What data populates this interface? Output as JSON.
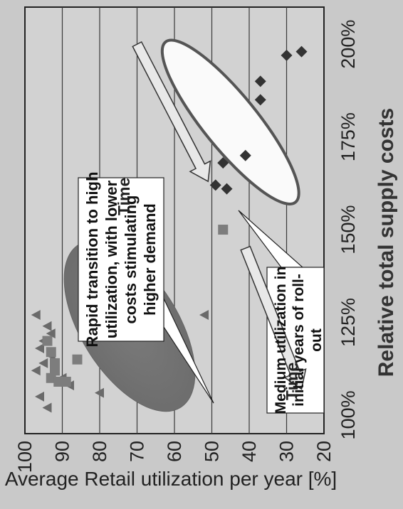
{
  "chart_data": {
    "type": "scatter",
    "title": "",
    "xlabel": "Relative total supply costs",
    "ylabel": "Average Retail utilization per year [%]",
    "x_unit": "%",
    "xlim": [
      95,
      210
    ],
    "ylim": [
      20,
      100
    ],
    "x_ticks": [
      "100%",
      "125%",
      "150%",
      "175%",
      "200%"
    ],
    "y_ticks": [
      "100",
      "90",
      "80",
      "70",
      "60",
      "50",
      "40",
      "30",
      "20"
    ],
    "grid": "horizontal",
    "series": [
      {
        "marker": "triangle",
        "color": "#6a6a6a",
        "points": [
          {
            "x": 112,
            "y": 97
          },
          {
            "x": 118,
            "y": 96
          },
          {
            "x": 124,
            "y": 94
          },
          {
            "x": 127,
            "y": 97
          },
          {
            "x": 114,
            "y": 95
          },
          {
            "x": 120,
            "y": 95
          },
          {
            "x": 122,
            "y": 93
          },
          {
            "x": 116,
            "y": 93
          },
          {
            "x": 105,
            "y": 96
          },
          {
            "x": 102,
            "y": 94
          },
          {
            "x": 110,
            "y": 90
          },
          {
            "x": 108,
            "y": 88
          },
          {
            "x": 106,
            "y": 80
          },
          {
            "x": 127,
            "y": 52
          }
        ]
      },
      {
        "marker": "square",
        "color": "#7d7d7d",
        "points": [
          {
            "x": 120,
            "y": 94
          },
          {
            "x": 117,
            "y": 93
          },
          {
            "x": 114,
            "y": 92
          },
          {
            "x": 112,
            "y": 92
          },
          {
            "x": 110,
            "y": 93
          },
          {
            "x": 109,
            "y": 91
          },
          {
            "x": 109,
            "y": 89
          },
          {
            "x": 115,
            "y": 86
          },
          {
            "x": 150,
            "y": 47
          }
        ]
      },
      {
        "marker": "diamond",
        "color": "#333333",
        "points": [
          {
            "x": 162,
            "y": 49
          },
          {
            "x": 161,
            "y": 46
          },
          {
            "x": 168,
            "y": 47
          },
          {
            "x": 170,
            "y": 41
          },
          {
            "x": 185,
            "y": 37
          },
          {
            "x": 190,
            "y": 37
          },
          {
            "x": 197,
            "y": 30
          },
          {
            "x": 198,
            "y": 26
          }
        ]
      }
    ],
    "annotations": [
      {
        "lines": [
          "Rapid transition to high",
          "utilization, with lower",
          "costs stimulating",
          "higher demand"
        ]
      },
      {
        "lines": [
          "Medium utilization in",
          "initial years of roll-",
          "out"
        ]
      },
      {
        "text": "Time"
      },
      {
        "text": "Time"
      }
    ]
  }
}
